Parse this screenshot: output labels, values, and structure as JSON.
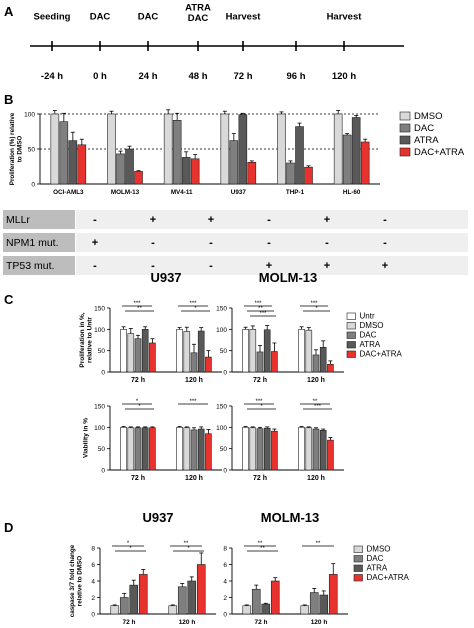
{
  "panel_labels": {
    "A": "A",
    "B": "B",
    "C": "C",
    "D": "D"
  },
  "timeline": {
    "events": [
      {
        "label": "Seeding",
        "time": "-24 h"
      },
      {
        "label": "DAC",
        "time": "0 h"
      },
      {
        "label": "DAC",
        "time": "24 h"
      },
      {
        "label": "ATRA\nDAC",
        "time": "48 h"
      },
      {
        "label": "Harvest",
        "time": "72 h"
      },
      {
        "label": "",
        "time": "96 h"
      },
      {
        "label": "Harvest",
        "time": "120 h"
      }
    ]
  },
  "colors": {
    "DMSO": "#d9d9d9",
    "DAC": "#7f7f7f",
    "ATRA": "#595959",
    "DAC+ATRA": "#e8322e",
    "Untr": "#ffffff",
    "table_label_bg": "#bdbdbd",
    "table_cell_bg": "#efefef"
  },
  "mutation_table": {
    "rows": [
      {
        "label": "MLLr",
        "values": [
          "-",
          "+",
          "+",
          "-",
          "+",
          "-"
        ]
      },
      {
        "label": "NPM1 mut.",
        "values": [
          "+",
          "-",
          "-",
          "-",
          "-",
          "-"
        ]
      },
      {
        "label": "TP53 mut.",
        "values": [
          "-",
          "-",
          "-",
          "+",
          "+",
          "+"
        ]
      }
    ]
  },
  "chart_data": [
    {
      "type": "bar",
      "panel": "B",
      "ylabel": "Proliferation (%) relative\nto DMSO",
      "ylim": [
        0,
        100
      ],
      "yticks": [
        "0",
        "50",
        "100"
      ],
      "reference_lines": [
        50,
        100
      ],
      "categories": [
        "OCI-AML3",
        "MOLM-13",
        "MV4-11",
        "U937",
        "THP-1",
        "HL-60"
      ],
      "legend_position": "right",
      "series": [
        {
          "name": "DMSO",
          "values": [
            100,
            100,
            100,
            100,
            100,
            100
          ],
          "errors": [
            5,
            4,
            6,
            4,
            3,
            5
          ]
        },
        {
          "name": "DAC",
          "values": [
            89,
            43,
            91,
            62,
            30,
            70
          ],
          "errors": [
            12,
            4,
            10,
            10,
            3,
            2
          ]
        },
        {
          "name": "ATRA",
          "values": [
            62,
            50,
            38,
            99,
            82,
            95
          ],
          "errors": [
            12,
            4,
            8,
            2,
            5,
            3
          ]
        },
        {
          "name": "DAC+ATRA",
          "values": [
            56,
            18,
            36,
            31,
            24,
            60
          ],
          "errors": [
            8,
            1,
            6,
            2,
            2,
            4
          ]
        }
      ]
    },
    {
      "type": "bar",
      "panel": "C",
      "title": "U937",
      "ylabel": "Proliferation in %,\nrelative to Untr",
      "ylim": [
        0,
        150
      ],
      "yticks": [
        "0",
        "50",
        "100",
        "150"
      ],
      "categories": [
        "72 h",
        "120 h"
      ],
      "series": [
        {
          "name": "Untr",
          "values": [
            100,
            100
          ],
          "errors": [
            6,
            4
          ]
        },
        {
          "name": "DMSO",
          "values": [
            90,
            95
          ],
          "errors": [
            12,
            10
          ]
        },
        {
          "name": "DAC",
          "values": [
            78,
            45
          ],
          "errors": [
            8,
            20
          ]
        },
        {
          "name": "ATRA",
          "values": [
            100,
            96
          ],
          "errors": [
            6,
            8
          ]
        },
        {
          "name": "DAC+ATRA",
          "values": [
            68,
            35
          ],
          "errors": [
            10,
            15
          ]
        }
      ],
      "significance": [
        "***",
        "**",
        "***",
        "*"
      ]
    },
    {
      "type": "bar",
      "panel": "C",
      "title": "MOLM-13",
      "ylabel": "",
      "ylim": [
        0,
        150
      ],
      "yticks": [
        "0",
        "50",
        "100",
        "150"
      ],
      "categories": [
        "72 h",
        "120 h"
      ],
      "legend_position": "right",
      "series": [
        {
          "name": "Untr",
          "values": [
            100,
            100
          ],
          "errors": [
            5,
            6
          ]
        },
        {
          "name": "DMSO",
          "values": [
            100,
            98
          ],
          "errors": [
            8,
            6
          ]
        },
        {
          "name": "DAC",
          "values": [
            47,
            40
          ],
          "errors": [
            15,
            12
          ]
        },
        {
          "name": "ATRA",
          "values": [
            99,
            58
          ],
          "errors": [
            10,
            15
          ]
        },
        {
          "name": "DAC+ATRA",
          "values": [
            48,
            18
          ],
          "errors": [
            20,
            8
          ]
        }
      ],
      "significance": [
        "***",
        "**",
        "***",
        "***",
        "*"
      ]
    },
    {
      "type": "bar",
      "panel": "C",
      "title": "",
      "ylabel": "Viability in %",
      "ylim": [
        0,
        150
      ],
      "yticks": [
        "0",
        "50",
        "100",
        "150"
      ],
      "categories": [
        "72 h",
        "120 h"
      ],
      "series": [
        {
          "name": "Untr",
          "values": [
            100,
            100
          ],
          "errors": [
            2,
            2
          ]
        },
        {
          "name": "DMSO",
          "values": [
            99,
            99
          ],
          "errors": [
            2,
            2
          ]
        },
        {
          "name": "DAC",
          "values": [
            99,
            94
          ],
          "errors": [
            2,
            5
          ]
        },
        {
          "name": "ATRA",
          "values": [
            99,
            96
          ],
          "errors": [
            2,
            5
          ]
        },
        {
          "name": "DAC+ATRA",
          "values": [
            99,
            85
          ],
          "errors": [
            2,
            10
          ]
        }
      ],
      "significance": [
        "*",
        "*",
        "***"
      ]
    },
    {
      "type": "bar",
      "panel": "C",
      "title": "",
      "ylabel": "",
      "ylim": [
        0,
        150
      ],
      "yticks": [
        "0",
        "50",
        "100",
        "150"
      ],
      "categories": [
        "72 h",
        "120 h"
      ],
      "series": [
        {
          "name": "Untr",
          "values": [
            100,
            100
          ],
          "errors": [
            2,
            2
          ]
        },
        {
          "name": "DMSO",
          "values": [
            99,
            99
          ],
          "errors": [
            2,
            2
          ]
        },
        {
          "name": "DAC",
          "values": [
            97,
            96
          ],
          "errors": [
            3,
            3
          ]
        },
        {
          "name": "ATRA",
          "values": [
            98,
            93
          ],
          "errors": [
            3,
            3
          ]
        },
        {
          "name": "DAC+ATRA",
          "values": [
            91,
            70
          ],
          "errors": [
            5,
            6
          ]
        }
      ],
      "significance": [
        "***",
        "*",
        "**",
        "***"
      ]
    },
    {
      "type": "bar",
      "panel": "D",
      "title": "U937",
      "ylabel": "caspase 3/7 fold change\nrelative to DMSO",
      "ylim": [
        0,
        8
      ],
      "yticks": [
        "0",
        "2",
        "4",
        "6",
        "8"
      ],
      "categories": [
        "72 h",
        "120 h"
      ],
      "series": [
        {
          "name": "DMSO",
          "values": [
            1,
            1
          ],
          "errors": [
            0.1,
            0.1
          ]
        },
        {
          "name": "DAC",
          "values": [
            2,
            3.3
          ],
          "errors": [
            0.5,
            0.4
          ]
        },
        {
          "name": "ATRA",
          "values": [
            3.5,
            4
          ],
          "errors": [
            0.6,
            0.5
          ]
        },
        {
          "name": "DAC+ATRA",
          "values": [
            4.8,
            6
          ],
          "errors": [
            0.6,
            1.4
          ]
        }
      ],
      "significance": [
        "*",
        "*",
        "**",
        "*"
      ]
    },
    {
      "type": "bar",
      "panel": "D",
      "title": "MOLM-13",
      "ylabel": "",
      "ylim": [
        0,
        8
      ],
      "yticks": [
        "0",
        "2",
        "4",
        "6",
        "8"
      ],
      "categories": [
        "72 h",
        "120 h"
      ],
      "legend_position": "right",
      "series": [
        {
          "name": "DMSO",
          "values": [
            1,
            1
          ],
          "errors": [
            0.1,
            0.1
          ]
        },
        {
          "name": "DAC",
          "values": [
            3,
            2.6
          ],
          "errors": [
            0.5,
            0.5
          ]
        },
        {
          "name": "ATRA",
          "values": [
            1.2,
            2.3
          ],
          "errors": [
            0.1,
            0.5
          ]
        },
        {
          "name": "DAC+ATRA",
          "values": [
            4,
            4.8
          ],
          "errors": [
            0.4,
            1.3
          ]
        }
      ],
      "significance": [
        "**",
        "**",
        "**"
      ]
    }
  ]
}
